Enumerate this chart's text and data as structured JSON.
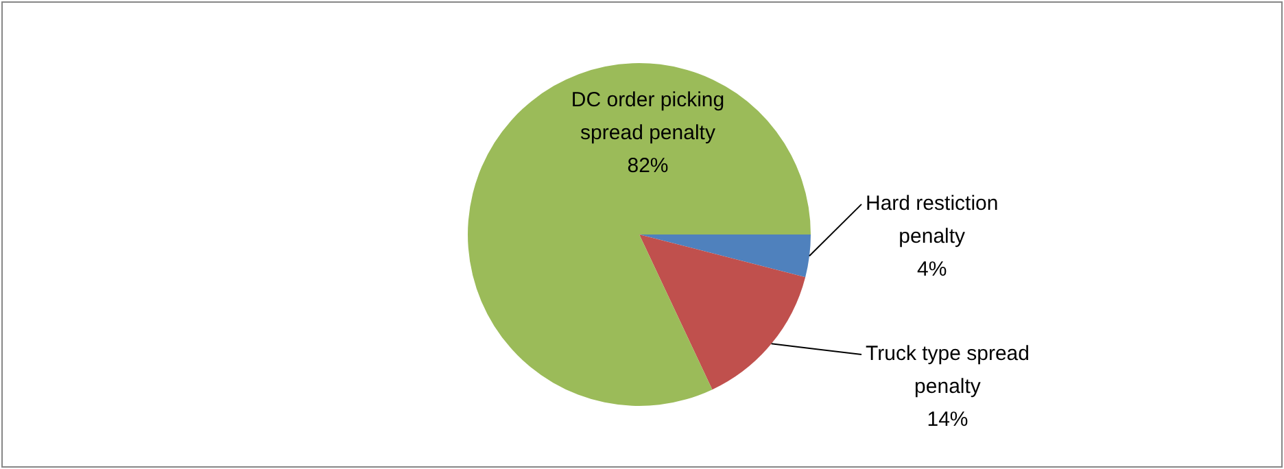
{
  "chart_data": {
    "type": "pie",
    "categories": [
      "Hard restiction penalty",
      "Truck type spread penalty",
      "DC order picking spread penalty"
    ],
    "values": [
      4,
      14,
      82
    ],
    "value_labels": [
      "4%",
      "14%",
      "82%"
    ],
    "colors": [
      "#4f81bd",
      "#c0504d",
      "#9bbb59"
    ],
    "legend": false
  }
}
